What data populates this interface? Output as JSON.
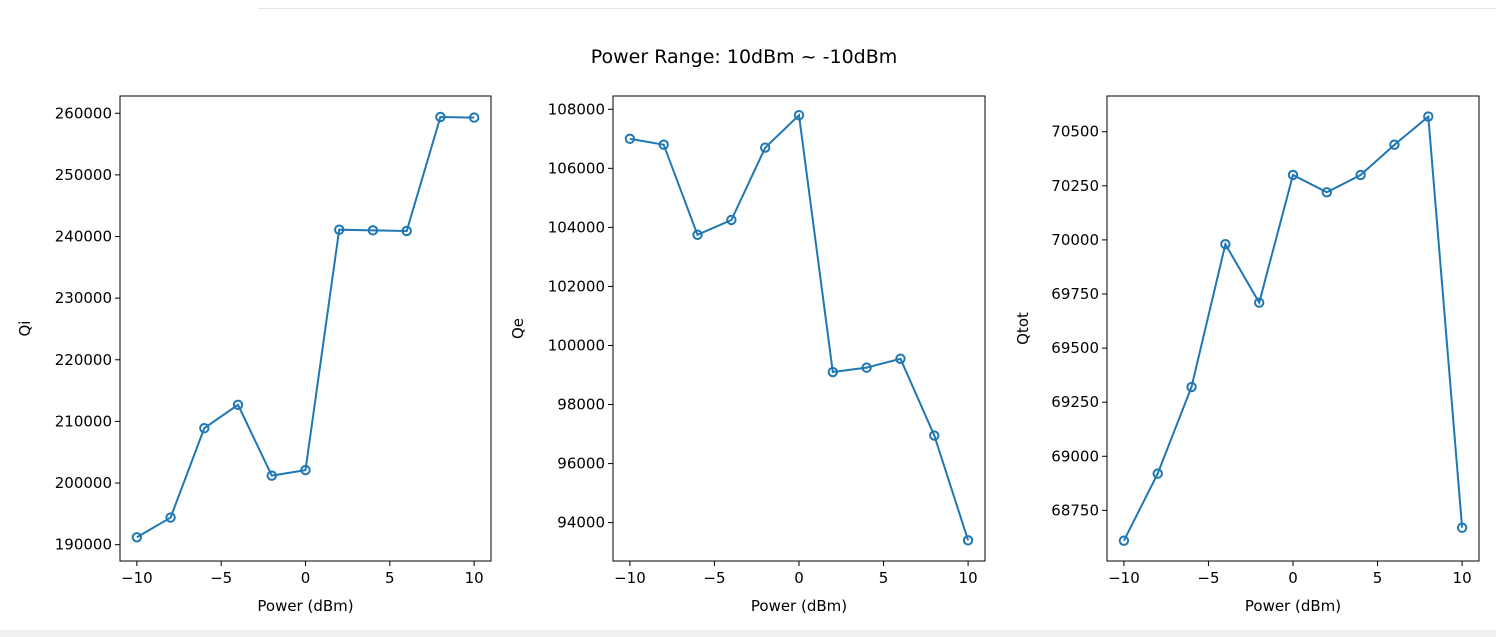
{
  "figure": {
    "title": "Power Range: 10dBm ~ -10dBm",
    "line_color": "#1f77b4"
  },
  "chart_data": [
    {
      "type": "line",
      "name": "qi",
      "xlabel": "Power (dBm)",
      "ylabel": "Qi",
      "x": [
        -10,
        -8,
        -6,
        -4,
        -2,
        0,
        2,
        4,
        6,
        8,
        10
      ],
      "y": [
        191200,
        194400,
        208900,
        212700,
        201200,
        202100,
        241100,
        241000,
        240900,
        259400,
        259300
      ],
      "xlim": [
        -11,
        11
      ],
      "ylim": [
        187350,
        262800
      ],
      "xticks": [
        -10,
        -5,
        0,
        5,
        10
      ],
      "yticks": [
        190000,
        200000,
        210000,
        220000,
        230000,
        240000,
        250000,
        260000
      ],
      "grid": false,
      "markers": "hollow-circle"
    },
    {
      "type": "line",
      "name": "qe",
      "xlabel": "Power (dBm)",
      "ylabel": "Qe",
      "x": [
        -10,
        -8,
        -6,
        -4,
        -2,
        0,
        2,
        4,
        6,
        8,
        10
      ],
      "y": [
        107000,
        106800,
        103750,
        104250,
        106700,
        107800,
        99100,
        99250,
        99550,
        96950,
        93400
      ],
      "xlim": [
        -11,
        11
      ],
      "ylim": [
        92700,
        108450
      ],
      "xticks": [
        -10,
        -5,
        0,
        5,
        10
      ],
      "yticks": [
        94000,
        96000,
        98000,
        100000,
        102000,
        104000,
        106000,
        108000
      ],
      "grid": false,
      "markers": "hollow-circle"
    },
    {
      "type": "line",
      "name": "qtot",
      "xlabel": "Power (dBm)",
      "ylabel": "Qtot",
      "x": [
        -10,
        -8,
        -6,
        -4,
        -2,
        0,
        2,
        4,
        6,
        8,
        10
      ],
      "y": [
        68610,
        68920,
        69320,
        69980,
        69710,
        70300,
        70220,
        70300,
        70440,
        70570,
        68670
      ],
      "xlim": [
        -11,
        11
      ],
      "ylim": [
        68516,
        70665
      ],
      "xticks": [
        -10,
        -5,
        0,
        5,
        10
      ],
      "yticks": [
        68750,
        69000,
        69250,
        69500,
        69750,
        70000,
        70250,
        70500
      ],
      "grid": false,
      "markers": "hollow-circle"
    }
  ]
}
